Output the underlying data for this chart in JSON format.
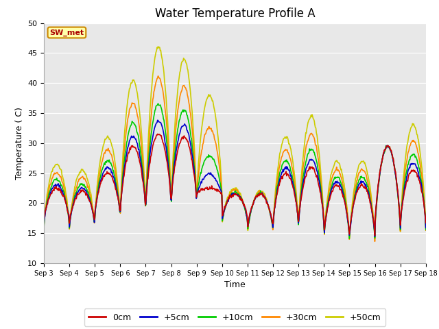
{
  "title": "Water Temperature Profile A",
  "xlabel": "Time",
  "ylabel": "Temperature (C)",
  "ylim": [
    10,
    50
  ],
  "colors": {
    "0cm": "#cc0000",
    "+5cm": "#0000cc",
    "+10cm": "#00cc00",
    "+30cm": "#ff8800",
    "+50cm": "#cccc00"
  },
  "legend_label": "SW_met",
  "legend_bg": "#ffffaa",
  "legend_edge": "#cc8800",
  "plot_bg": "#e8e8e8",
  "title_fontsize": 12,
  "label_fontsize": 9,
  "tick_fontsize": 8,
  "xtick_labels": [
    "Sep 3",
    "Sep 4",
    "Sep 5",
    "Sep 6",
    "Sep 7",
    "Sep 8",
    "Sep 9",
    "Sep 10",
    "Sep 11",
    "Sep 12",
    "Sep 13",
    "Sep 14",
    "Sep 15",
    "Sep 16",
    "Sep 17",
    "Sep 18"
  ],
  "yticks": [
    10,
    15,
    20,
    25,
    30,
    35,
    40,
    45,
    50
  ],
  "day_periods": [
    {
      "day_start": 0,
      "day_end": 1,
      "base": 19.0,
      "trough": 17.0,
      "peaks": [
        22.5,
        26.5
      ]
    },
    {
      "day_start": 1,
      "day_end": 2,
      "base": 18.5,
      "trough": 16.5,
      "peaks": [
        22.0,
        25.5
      ]
    },
    {
      "day_start": 2,
      "day_end": 3,
      "base": 19.0,
      "trough": 18.0,
      "peaks": [
        25.0,
        31.0
      ]
    },
    {
      "day_start": 3,
      "day_end": 4,
      "base": 19.0,
      "trough": 18.5,
      "peaks": [
        29.5,
        40.5
      ]
    },
    {
      "day_start": 4,
      "day_end": 5,
      "base": 20.0,
      "trough": 19.5,
      "peaks": [
        31.5,
        46.0
      ]
    },
    {
      "day_start": 5,
      "day_end": 6,
      "base": 21.0,
      "trough": 20.0,
      "peaks": [
        31.0,
        44.0
      ]
    },
    {
      "day_start": 6,
      "day_end": 7,
      "base": 19.5,
      "trough": 21.5,
      "peaks": [
        22.5,
        38.0
      ]
    },
    {
      "day_start": 7,
      "day_end": 8,
      "base": 19.0,
      "trough": 17.5,
      "peaks": [
        21.5,
        22.5
      ]
    },
    {
      "day_start": 8,
      "day_end": 9,
      "base": 18.5,
      "trough": 16.0,
      "peaks": [
        21.5,
        22.0
      ]
    },
    {
      "day_start": 9,
      "day_end": 10,
      "base": 18.5,
      "trough": 16.5,
      "peaks": [
        25.0,
        31.0
      ]
    },
    {
      "day_start": 10,
      "day_end": 11,
      "base": 19.0,
      "trough": 16.5,
      "peaks": [
        26.0,
        34.5
      ]
    },
    {
      "day_start": 11,
      "day_end": 12,
      "base": 18.5,
      "trough": 14.5,
      "peaks": [
        23.0,
        27.0
      ]
    },
    {
      "day_start": 12,
      "day_end": 13,
      "base": 18.5,
      "trough": 14.5,
      "peaks": [
        23.0,
        27.0
      ]
    },
    {
      "day_start": 13,
      "day_end": 14,
      "base": 18.5,
      "trough": 16.0,
      "peaks": [
        29.5,
        29.5
      ]
    },
    {
      "day_start": 14,
      "day_end": 15,
      "base": 19.0,
      "trough": 16.5,
      "peaks": [
        25.5,
        33.0
      ]
    }
  ]
}
